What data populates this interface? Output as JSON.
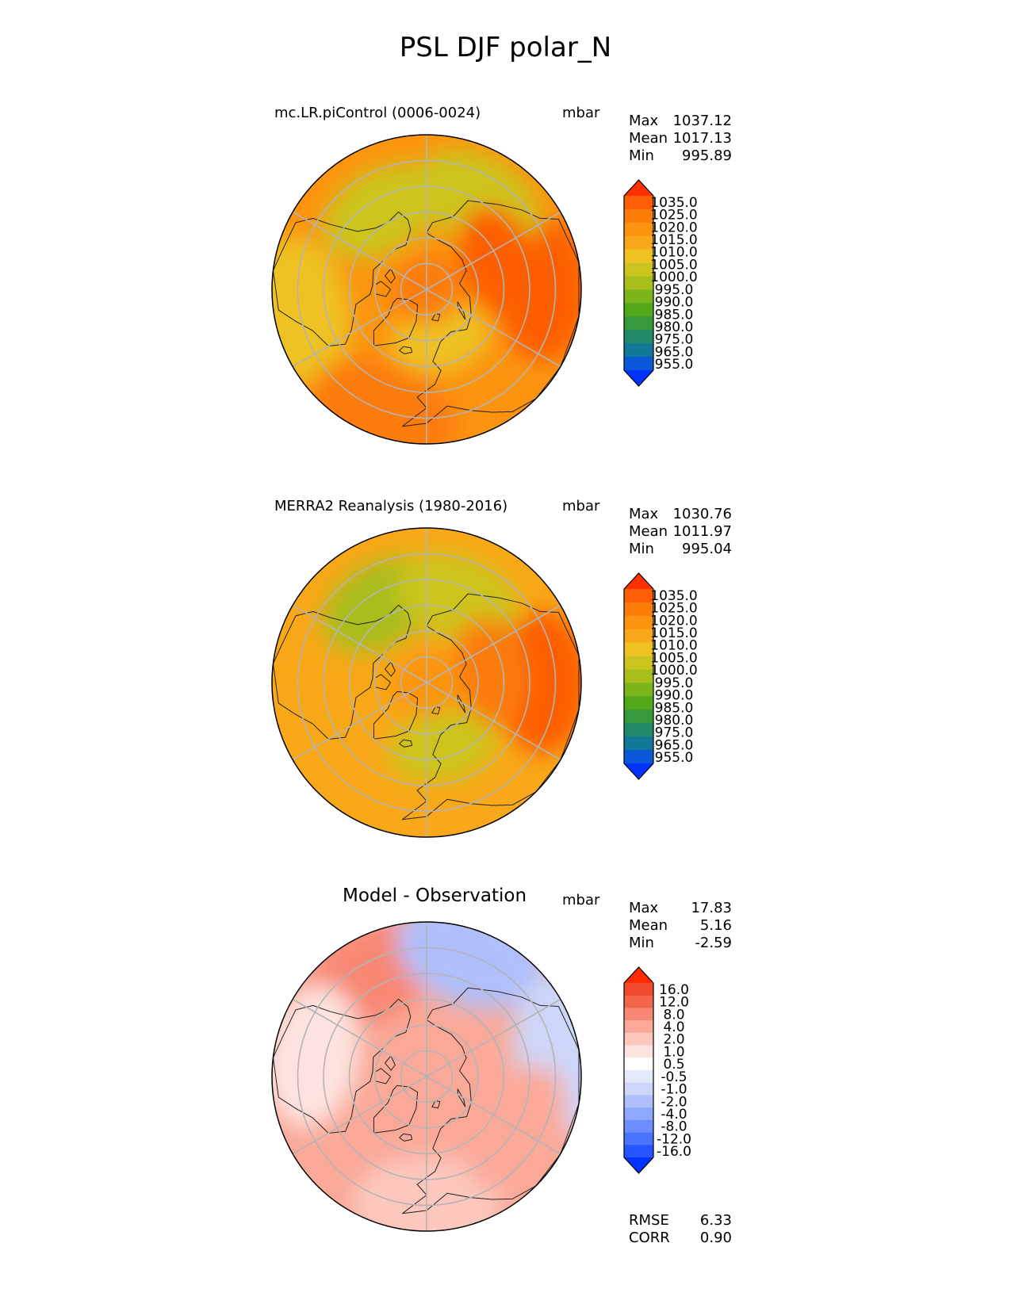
{
  "figure": {
    "title": "PSL DJF polar_N"
  },
  "colors": {
    "psl_scale": [
      "#0033ff",
      "#0a58d8",
      "#117898",
      "#22886a",
      "#38983c",
      "#52a818",
      "#7ab418",
      "#a8be1a",
      "#ccc41e",
      "#eec222",
      "#f8a818",
      "#fc9410",
      "#fc7c0a",
      "#fd5e06",
      "#fe3000"
    ],
    "diff_scale": [
      "#0033ff",
      "#2656ff",
      "#4a74ff",
      "#6c8eff",
      "#8fa7ff",
      "#aebffc",
      "#cdd6f8",
      "#e5eafa",
      "#ffffff",
      "#fde3df",
      "#fcc7bd",
      "#faa998",
      "#f78873",
      "#f46649",
      "#f24a2c",
      "#fe2a00"
    ]
  },
  "chart_data": [
    {
      "type": "heatmap",
      "projection": "polar_N",
      "title": "mc.LR.piControl (0006-0024)",
      "units": "mbar",
      "stats": {
        "max_label": "Max",
        "max": "1037.12",
        "mean_label": "Mean",
        "mean": "1017.13",
        "min_label": "Min",
        "min": "995.89"
      },
      "colorbar_levels": [
        "1035.0",
        "1025.0",
        "1020.0",
        "1015.0",
        "1010.0",
        "1005.0",
        "1000.0",
        "995.0",
        "990.0",
        "985.0",
        "980.0",
        "975.0",
        "965.0",
        "955.0"
      ],
      "field": {
        "mean": 1017,
        "pole": 1024,
        "regions": [
          {
            "lon": 90,
            "lat": 45,
            "value": 1027
          },
          {
            "lon": 15,
            "lat": 70,
            "value": 1006
          },
          {
            "lon": -80,
            "lat": 40,
            "value": 1008
          },
          {
            "lon": -150,
            "lat": 55,
            "value": 1001
          },
          {
            "lon": 150,
            "lat": 50,
            "value": 1003
          },
          {
            "lon": -20,
            "lat": 40,
            "value": 1021
          },
          {
            "lon": 110,
            "lat": 60,
            "value": 1026
          }
        ]
      }
    },
    {
      "type": "heatmap",
      "projection": "polar_N",
      "title": "MERRA2 Reanalysis (1980-2016)",
      "units": "mbar",
      "stats": {
        "max_label": "Max",
        "max": "1030.76",
        "mean_label": "Mean",
        "mean": "1011.97",
        "min_label": "Min",
        "min": "995.04"
      },
      "colorbar_levels": [
        "1035.0",
        "1025.0",
        "1020.0",
        "1015.0",
        "1010.0",
        "1005.0",
        "1000.0",
        "995.0",
        "990.0",
        "985.0",
        "980.0",
        "975.0",
        "965.0",
        "955.0"
      ],
      "field": {
        "mean": 1012,
        "pole": 1019,
        "regions": [
          {
            "lon": 90,
            "lat": 45,
            "value": 1026
          },
          {
            "lon": 15,
            "lat": 65,
            "value": 1004
          },
          {
            "lon": -150,
            "lat": 55,
            "value": 999
          },
          {
            "lon": 160,
            "lat": 55,
            "value": 1000
          },
          {
            "lon": -60,
            "lat": 45,
            "value": 1013
          },
          {
            "lon": 100,
            "lat": 65,
            "value": 1020
          }
        ]
      }
    },
    {
      "type": "heatmap",
      "projection": "polar_N",
      "title": "Model - Observation",
      "units": "mbar",
      "stats": {
        "max_label": "Max",
        "max": "17.83",
        "mean_label": "Mean",
        "mean": "5.16",
        "min_label": "Min",
        "min": "-2.59"
      },
      "metrics": {
        "rmse_label": "RMSE",
        "rmse": "6.33",
        "corr_label": "CORR",
        "corr": "0.90"
      },
      "colorbar_levels": [
        "16.0",
        "12.0",
        "8.0",
        "4.0",
        "2.0",
        "1.0",
        "0.5",
        "-0.5",
        "-1.0",
        "-2.0",
        "-4.0",
        "-8.0",
        "-12.0",
        "-16.0"
      ],
      "field": {
        "mean": 5,
        "pole": 7,
        "regions": [
          {
            "lon": -150,
            "lat": 45,
            "value": 11
          },
          {
            "lon": 160,
            "lat": 40,
            "value": -2
          },
          {
            "lon": 100,
            "lat": 35,
            "value": -1
          },
          {
            "lon": -100,
            "lat": 45,
            "value": 1
          },
          {
            "lon": 0,
            "lat": 40,
            "value": 3
          },
          {
            "lon": 60,
            "lat": 50,
            "value": 5
          }
        ]
      }
    }
  ]
}
